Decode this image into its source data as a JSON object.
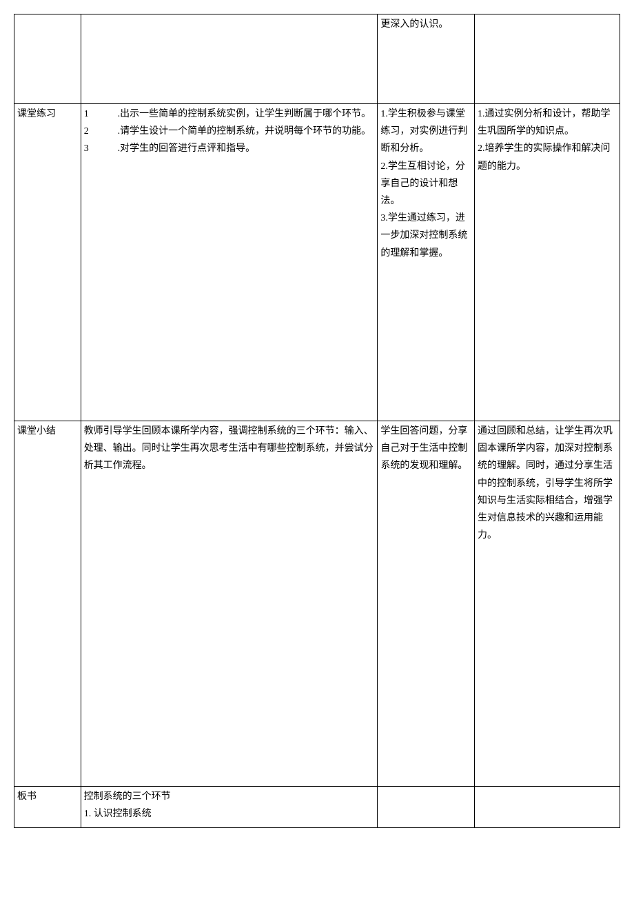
{
  "table": {
    "row1": {
      "c1": "",
      "c2": "",
      "c3": "更深入的认识。",
      "c4": ""
    },
    "row2": {
      "c1": "课堂练习",
      "c2": "1　　　.出示一些简单的控制系统实例，让学生判断属于哪个环节。\n2　　　.请学生设计一个简单的控制系统，并说明每个环节的功能。\n3　　　.对学生的回答进行点评和指导。",
      "c3": "1.学生积极参与课堂练习，对实例进行判断和分析。\n2.学生互相讨论，分享自己的设计和想法。\n3.学生通过练习，进一步加深对控制系统的理解和掌握。",
      "c4": "1.通过实例分析和设计，帮助学生巩固所学的知识点。\n2.培养学生的实际操作和解决问题的能力。"
    },
    "row3": {
      "c1": "课堂小结",
      "c2": "教师引导学生回顾本课所学内容，强调控制系统的三个环节：输入、处理、输出。同时让学生再次思考生活中有哪些控制系统，并尝试分析其工作流程。",
      "c3": "学生回答问题，分享自己对于生活中控制系统的发现和理解。",
      "c4": "通过回顾和总结，让学生再次巩固本课所学内容，加深对控制系统的理解。同时，通过分享生活中的控制系统，引导学生将所学知识与生活实际相结合，增强学生对信息技术的兴趣和运用能力。"
    },
    "row4": {
      "c1": "板书",
      "c2": "控制系统的三个环节\n1. 认识控制系统",
      "c3": "",
      "c4": ""
    }
  }
}
